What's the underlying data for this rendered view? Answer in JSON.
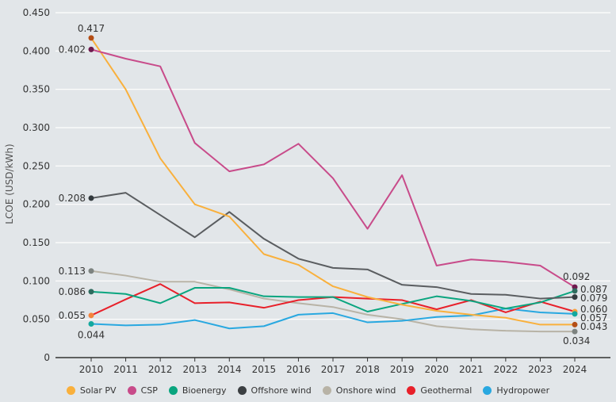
{
  "chart_data": {
    "type": "line",
    "title": "",
    "xlabel": "",
    "ylabel": "LCOE (USD/kWh)",
    "ylim": [
      0,
      0.45
    ],
    "yticks": [
      0,
      0.05,
      0.1,
      0.15,
      0.2,
      0.25,
      0.3,
      0.35,
      0.4,
      0.45
    ],
    "ytick_labels": [
      "0",
      "0.050",
      "0.100",
      "0.150",
      "0.200",
      "0.250",
      "0.300",
      "0.350",
      "0.400",
      "0.450"
    ],
    "grid": true,
    "legend_position": "bottom",
    "x": [
      2010,
      2011,
      2012,
      2013,
      2014,
      2015,
      2016,
      2017,
      2018,
      2019,
      2020,
      2021,
      2022,
      2023,
      2024
    ],
    "series": [
      {
        "name": "Solar PV",
        "color": "#f9b03c",
        "start_dot": "#b44e16",
        "end_dot": "#b44e16",
        "values": [
          0.417,
          0.35,
          0.26,
          0.2,
          0.184,
          0.135,
          0.121,
          0.093,
          0.079,
          0.069,
          0.061,
          0.056,
          0.052,
          0.043,
          0.043
        ],
        "start_label": "0.417",
        "end_label": "0.043"
      },
      {
        "name": "CSP",
        "color": "#c84b8a",
        "start_dot": "#6e1a4e",
        "end_dot": "#6e1a4e",
        "values": [
          0.402,
          0.39,
          0.38,
          0.28,
          0.243,
          0.252,
          0.279,
          0.234,
          0.168,
          0.238,
          0.12,
          0.128,
          0.125,
          0.12,
          0.092
        ],
        "start_label": "0.402",
        "end_label": "0.092"
      },
      {
        "name": "Bioenergy",
        "color": "#0aa57f",
        "start_dot": "#2e6b5e",
        "end_dot": "#2e6b5e",
        "values": [
          0.086,
          0.083,
          0.071,
          0.091,
          0.091,
          0.08,
          0.079,
          0.079,
          0.06,
          0.07,
          0.08,
          0.074,
          0.064,
          0.072,
          0.087
        ],
        "start_label": "0.086",
        "end_label": "0.087"
      },
      {
        "name": "Offshore wind",
        "color": "#5a5d60",
        "start_dot": "#333a3e",
        "end_dot": "#333a3e",
        "values": [
          0.208,
          0.215,
          0.186,
          0.157,
          0.19,
          0.155,
          0.129,
          0.117,
          0.115,
          0.095,
          0.092,
          0.083,
          0.082,
          0.077,
          0.079
        ],
        "start_label": "0.208",
        "end_label": "0.079"
      },
      {
        "name": "Onshore wind",
        "color": "#b8b3a6",
        "start_dot": "#7d8380",
        "end_dot": "#7d8380",
        "values": [
          0.113,
          0.107,
          0.099,
          0.099,
          0.089,
          0.077,
          0.071,
          0.066,
          0.056,
          0.05,
          0.041,
          0.037,
          0.035,
          0.034,
          0.034
        ],
        "start_label": "0.113",
        "end_label": "0.034"
      },
      {
        "name": "Geothermal",
        "color": "#e8202a",
        "start_dot": "#f4843d",
        "end_dot": "#f9a13c",
        "values": [
          0.055,
          0.076,
          0.096,
          0.071,
          0.072,
          0.065,
          0.075,
          0.079,
          0.077,
          0.075,
          0.063,
          0.075,
          0.059,
          0.073,
          0.06
        ],
        "start_label": "0.055",
        "end_label": "0.060"
      },
      {
        "name": "Hydropower",
        "color": "#29a8e0",
        "start_dot": "#13a89e",
        "end_dot": "#13a89e",
        "values": [
          0.044,
          0.042,
          0.043,
          0.049,
          0.038,
          0.041,
          0.056,
          0.058,
          0.046,
          0.048,
          0.053,
          0.055,
          0.064,
          0.059,
          0.057
        ],
        "start_label": "0.044",
        "end_label": "0.057"
      }
    ]
  },
  "legend": [
    {
      "label": "Solar PV",
      "color": "#f9b03c"
    },
    {
      "label": "CSP",
      "color": "#c84b8a"
    },
    {
      "label": "Bioenergy",
      "color": "#0aa57f"
    },
    {
      "label": "Offshore wind",
      "color": "#3b3f42"
    },
    {
      "label": "Onshore wind",
      "color": "#b8b3a6"
    },
    {
      "label": "Geothermal",
      "color": "#e8202a"
    },
    {
      "label": "Hydropower",
      "color": "#29a8e0"
    }
  ]
}
